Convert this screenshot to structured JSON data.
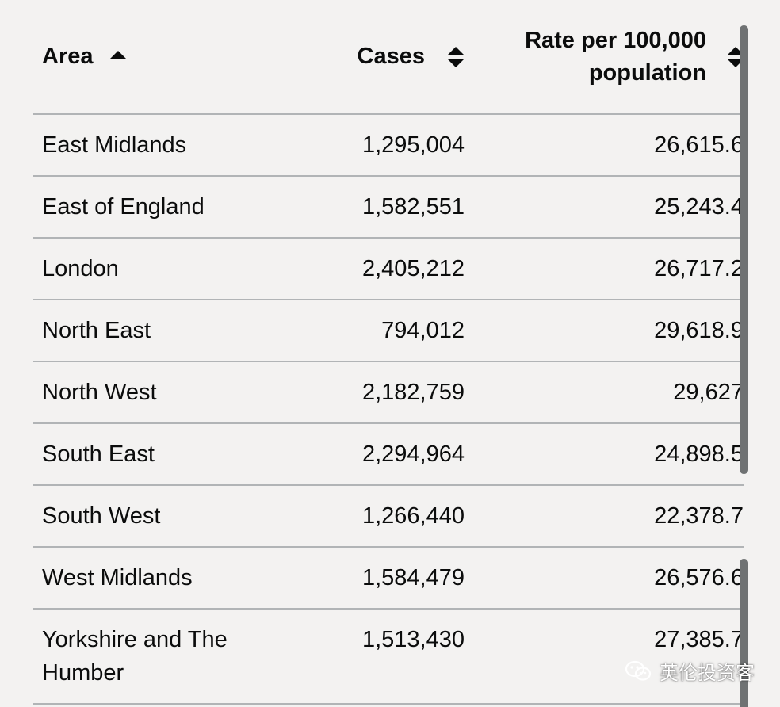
{
  "table": {
    "headers": {
      "area": "Area",
      "cases": "Cases",
      "rate": "Rate per 100,000 population"
    },
    "sort": {
      "column": "area",
      "direction": "ascending"
    },
    "rows": [
      {
        "area": "East Midlands",
        "cases": "1,295,004",
        "rate": "26,615.6"
      },
      {
        "area": "East of England",
        "cases": "1,582,551",
        "rate": "25,243.4"
      },
      {
        "area": "London",
        "cases": "2,405,212",
        "rate": "26,717.2"
      },
      {
        "area": "North East",
        "cases": "794,012",
        "rate": "29,618.9"
      },
      {
        "area": "North West",
        "cases": "2,182,759",
        "rate": "29,627"
      },
      {
        "area": "South East",
        "cases": "2,294,964",
        "rate": "24,898.5"
      },
      {
        "area": "South West",
        "cases": "1,266,440",
        "rate": "22,378.7"
      },
      {
        "area": "West Midlands",
        "cases": "1,584,479",
        "rate": "26,576.6"
      },
      {
        "area": "Yorkshire and The Humber",
        "cases": "1,513,430",
        "rate": "27,385.7"
      }
    ]
  },
  "watermark": {
    "text": "英伦投资客",
    "icon": "wechat-icon"
  },
  "colors": {
    "background": "#f3f2f1",
    "text": "#0b0c0c",
    "divider": "#b1b4b6",
    "scrollbar": "#6f7273"
  }
}
